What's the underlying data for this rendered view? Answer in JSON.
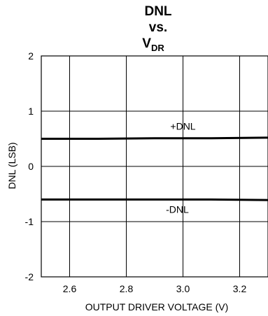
{
  "chart_data": {
    "type": "line",
    "title": {
      "line1": "DNL",
      "line2": "vs.",
      "line3_main": "V",
      "line3_sub": "DR"
    },
    "xlabel": "OUTPUT DRIVER VOLTAGE (V)",
    "ylabel": "DNL (LSB)",
    "xlim": [
      2.5,
      3.3
    ],
    "ylim": [
      -2,
      2
    ],
    "xticks": [
      2.6,
      2.8,
      3.0,
      3.2
    ],
    "xtick_labels": [
      "2.6",
      "2.8",
      "3.0",
      "3.2"
    ],
    "yticks": [
      2,
      1,
      0,
      -1,
      -2
    ],
    "ytick_labels": [
      "2",
      "1",
      "0",
      "-1",
      "-2"
    ],
    "grid": true,
    "series": [
      {
        "name": "+DNL",
        "x": [
          2.5,
          2.7,
          2.9,
          3.1,
          3.3
        ],
        "y": [
          0.5,
          0.5,
          0.51,
          0.51,
          0.52
        ]
      },
      {
        "name": "-DNL",
        "x": [
          2.5,
          2.7,
          2.9,
          3.1,
          3.3
        ],
        "y": [
          -0.6,
          -0.6,
          -0.6,
          -0.6,
          -0.61
        ]
      }
    ],
    "annotations": [
      {
        "text": "+DNL",
        "x": 3.0,
        "y": 0.73
      },
      {
        "text": "-DNL",
        "x": 2.98,
        "y": -0.78
      }
    ]
  }
}
